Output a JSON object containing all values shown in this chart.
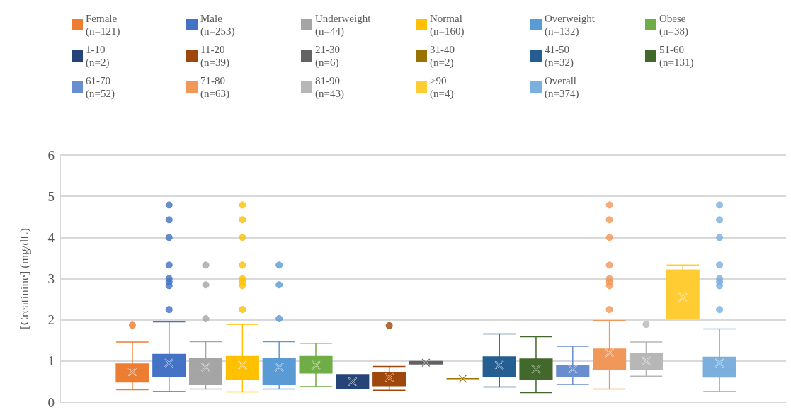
{
  "chart_data": {
    "type": "box",
    "ylabel": "[Creatinine] (mg/dL)",
    "categories": [
      null
    ],
    "ylim": [
      0,
      6
    ],
    "yticks": [
      0,
      1,
      2,
      3,
      4,
      5,
      6
    ],
    "grid": "y",
    "legend": "top",
    "series": [
      {
        "name": "Female (n=121)",
        "color": "#ed7d31",
        "boxes": [
          {
            "low": 0.3,
            "q1": 0.49,
            "median": 0.75,
            "q3": 0.93,
            "high": 1.46,
            "mean": 0.74,
            "outliers": [
              1.87
            ]
          }
        ]
      },
      {
        "name": "Male (n=253)",
        "color": "#4472c4",
        "boxes": [
          {
            "low": 0.26,
            "q1": 0.63,
            "median": 0.86,
            "q3": 1.16,
            "high": 1.95,
            "mean": 0.95,
            "outliers": [
              2.25,
              2.83,
              2.92,
              3.0,
              3.33,
              4.0,
              4.43,
              4.79
            ]
          }
        ]
      },
      {
        "name": "Underweight (n=44)",
        "color": "#a5a5a5",
        "boxes": [
          {
            "low": 0.32,
            "q1": 0.43,
            "median": 0.66,
            "q3": 1.07,
            "high": 1.47,
            "mean": 0.85,
            "outliers": [
              2.03,
              2.85,
              3.33
            ]
          }
        ]
      },
      {
        "name": "Normal (n=160)",
        "color": "#ffc000",
        "boxes": [
          {
            "low": 0.25,
            "q1": 0.56,
            "median": 0.82,
            "q3": 1.11,
            "high": 1.89,
            "mean": 0.9,
            "outliers": [
              2.25,
              2.83,
              2.92,
              3.0,
              3.33,
              4.0,
              4.43,
              4.79
            ]
          }
        ]
      },
      {
        "name": "Overweight (n=132)",
        "color": "#5b9bd5",
        "boxes": [
          {
            "low": 0.32,
            "q1": 0.43,
            "median": 0.65,
            "q3": 1.07,
            "high": 1.47,
            "mean": 0.85,
            "outliers": [
              2.03,
              2.85,
              3.33
            ]
          }
        ]
      },
      {
        "name": "Obese (n=38)",
        "color": "#70ad47",
        "boxes": [
          {
            "low": 0.38,
            "q1": 0.71,
            "median": 0.92,
            "q3": 1.11,
            "high": 1.43,
            "mean": 0.9
          }
        ]
      },
      {
        "name": "1-10 (n=2)",
        "color": "#264478",
        "boxes": [
          {
            "low": 0.33,
            "q1": 0.33,
            "median": 0.5,
            "q3": 0.67,
            "high": 0.67,
            "mean": 0.5
          }
        ]
      },
      {
        "name": "11-20 (n=39)",
        "color": "#9e480e",
        "boxes": [
          {
            "low": 0.29,
            "q1": 0.4,
            "median": 0.54,
            "q3": 0.71,
            "high": 0.87,
            "mean": 0.6,
            "outliers": [
              1.86
            ]
          }
        ]
      },
      {
        "name": "21-30 (n=6)",
        "color": "#636363",
        "boxes": [
          {
            "low": 0.93,
            "q1": 0.93,
            "median": 0.96,
            "q3": 0.99,
            "high": 0.99,
            "mean": 0.96
          }
        ]
      },
      {
        "name": "31-40 (n=2)",
        "color": "#997300",
        "boxes": [
          {
            "low": 0.57,
            "q1": 0.57,
            "median": 0.57,
            "q3": 0.57,
            "high": 0.57,
            "mean": 0.57
          }
        ]
      },
      {
        "name": "41-50 (n=32)",
        "color": "#255e91",
        "boxes": [
          {
            "low": 0.37,
            "q1": 0.63,
            "median": 0.86,
            "q3": 1.1,
            "high": 1.66,
            "mean": 0.9
          }
        ]
      },
      {
        "name": "51-60 (n=131)",
        "color": "#43682b",
        "boxes": [
          {
            "low": 0.23,
            "q1": 0.56,
            "median": 0.77,
            "q3": 1.05,
            "high": 1.59,
            "mean": 0.8
          }
        ]
      },
      {
        "name": "61-70 (n=52)",
        "color": "#698ed0",
        "boxes": [
          {
            "low": 0.43,
            "q1": 0.63,
            "median": 0.76,
            "q3": 0.9,
            "high": 1.36,
            "mean": 0.8
          }
        ]
      },
      {
        "name": "71-80 (n=63)",
        "color": "#f1975a",
        "boxes": [
          {
            "low": 0.32,
            "q1": 0.8,
            "median": 1.0,
            "q3": 1.29,
            "high": 1.98,
            "mean": 1.2,
            "outliers": [
              2.25,
              2.83,
              2.92,
              3.0,
              3.33,
              4.0,
              4.43,
              4.79
            ]
          }
        ]
      },
      {
        "name": "81-90 (n=43)",
        "color": "#b7b7b7",
        "boxes": [
          {
            "low": 0.63,
            "q1": 0.79,
            "median": 0.97,
            "q3": 1.18,
            "high": 1.46,
            "mean": 1.0,
            "outliers": [
              1.89
            ]
          }
        ]
      },
      {
        "name": ">90 (n=4)",
        "color": "#ffcd33",
        "boxes": [
          {
            "low": 2.04,
            "q1": 2.04,
            "median": 2.44,
            "q3": 3.21,
            "high": 3.33,
            "mean": 2.55
          }
        ]
      },
      {
        "name": "Overall (n=374)",
        "color": "#7cafdd",
        "boxes": [
          {
            "low": 0.26,
            "q1": 0.61,
            "median": 0.81,
            "q3": 1.09,
            "high": 1.78,
            "mean": 0.95,
            "outliers": [
              2.25,
              2.83,
              2.92,
              3.0,
              3.33,
              4.0,
              4.43,
              4.79
            ]
          }
        ]
      }
    ]
  }
}
